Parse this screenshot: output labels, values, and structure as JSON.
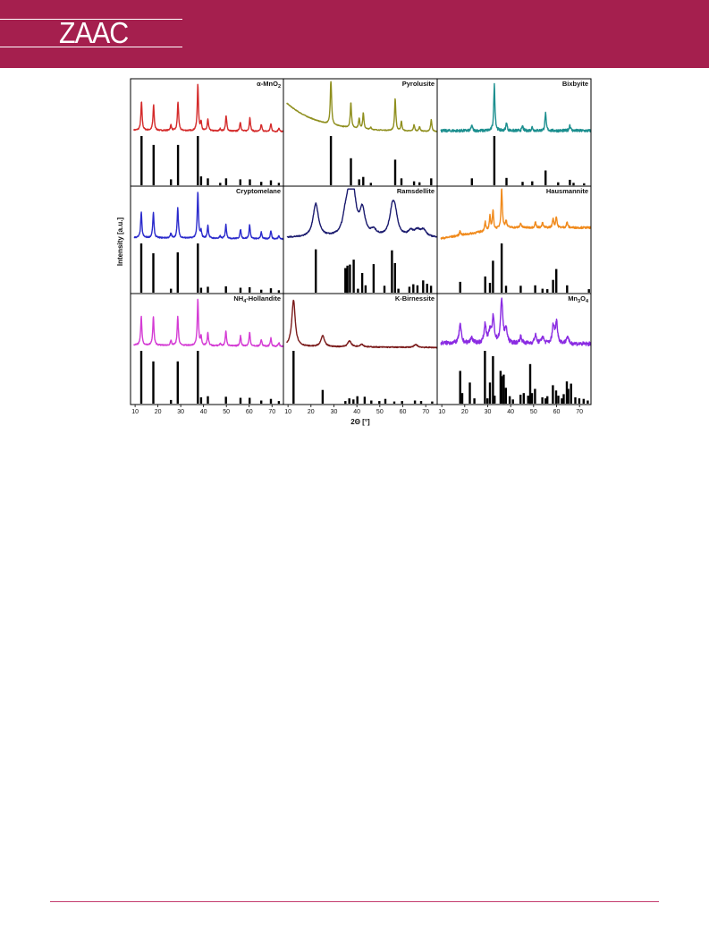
{
  "header": {
    "logo_text": "ZAAC",
    "band_color": "#a51f4e"
  },
  "chart_data": {
    "type": "line",
    "layout": "3x3 grid of panels, each with a measured pattern (top) and reference stick pattern (bottom)",
    "xlabel": "2Θ [°]",
    "ylabel": "Intensity [a.u.]",
    "xlim": [
      8,
      75
    ],
    "x_ticks": [
      "10",
      "20",
      "30",
      "40",
      "50",
      "60",
      "70"
    ],
    "x_ticks_first_column": [
      "10",
      "20",
      "30",
      "40",
      "50",
      "60",
      "70"
    ],
    "grid": false,
    "panels": [
      {
        "name": "α-MnO2",
        "title_parts": [
          {
            "t": "α-MnO"
          },
          {
            "t": "2",
            "sub": true
          }
        ],
        "color": "#d42a2a",
        "baseline_start": 0.08,
        "baseline_end": 0.05,
        "noise": 0.012,
        "peaks": [
          [
            12.8,
            0.62
          ],
          [
            18.1,
            0.55
          ],
          [
            25.7,
            0.12
          ],
          [
            28.8,
            0.62
          ],
          [
            37.5,
            1.0
          ],
          [
            38.9,
            0.18
          ],
          [
            41.9,
            0.25
          ],
          [
            47.3,
            0.05
          ],
          [
            49.9,
            0.33
          ],
          [
            56.1,
            0.2
          ],
          [
            60.3,
            0.3
          ],
          [
            65.3,
            0.15
          ],
          [
            69.5,
            0.17
          ],
          [
            73.0,
            0.08
          ]
        ],
        "sticks": [
          [
            12.8,
            1.0
          ],
          [
            18.1,
            0.82
          ],
          [
            25.7,
            0.12
          ],
          [
            28.8,
            0.82
          ],
          [
            37.5,
            1.0
          ],
          [
            38.9,
            0.18
          ],
          [
            41.9,
            0.14
          ],
          [
            47.3,
            0.05
          ],
          [
            49.9,
            0.14
          ],
          [
            56.1,
            0.12
          ],
          [
            60.3,
            0.12
          ],
          [
            65.3,
            0.07
          ],
          [
            69.5,
            0.1
          ],
          [
            73.0,
            0.05
          ]
        ]
      },
      {
        "name": "Pyrolusite",
        "title_parts": [
          {
            "t": "Pyrolusite"
          }
        ],
        "color": "#8f8f1e",
        "baseline_start": 0.62,
        "baseline_end": 0.05,
        "baseline_decay": 14,
        "noise": 0.008,
        "peaks": [
          [
            28.7,
            1.0
          ],
          [
            37.4,
            0.55
          ],
          [
            41.0,
            0.22
          ],
          [
            42.8,
            0.35
          ],
          [
            46.1,
            0.05
          ],
          [
            56.7,
            0.7
          ],
          [
            59.4,
            0.2
          ],
          [
            64.9,
            0.14
          ],
          [
            67.3,
            0.1
          ],
          [
            72.4,
            0.25
          ]
        ],
        "sticks": [
          [
            28.7,
            1.0
          ],
          [
            37.4,
            0.55
          ],
          [
            41.0,
            0.12
          ],
          [
            42.8,
            0.17
          ],
          [
            46.1,
            0.05
          ],
          [
            56.7,
            0.52
          ],
          [
            59.4,
            0.14
          ],
          [
            64.9,
            0.08
          ],
          [
            67.3,
            0.06
          ],
          [
            72.4,
            0.14
          ]
        ]
      },
      {
        "name": "Bixbyite",
        "title_parts": [
          {
            "t": "Bixbyite"
          }
        ],
        "color": "#1c8f8f",
        "baseline_start": 0.07,
        "baseline_end": 0.07,
        "noise": 0.028,
        "peaks": [
          [
            23.1,
            0.12
          ],
          [
            32.9,
            1.0
          ],
          [
            38.2,
            0.18
          ],
          [
            45.2,
            0.1
          ],
          [
            49.4,
            0.08
          ],
          [
            55.2,
            0.38
          ],
          [
            65.8,
            0.13
          ]
        ],
        "sticks": [
          [
            23.1,
            0.14
          ],
          [
            32.9,
            1.0
          ],
          [
            38.2,
            0.15
          ],
          [
            45.2,
            0.07
          ],
          [
            49.4,
            0.08
          ],
          [
            55.2,
            0.3
          ],
          [
            60.7,
            0.06
          ],
          [
            65.8,
            0.11
          ],
          [
            67.4,
            0.05
          ],
          [
            72.0,
            0.04
          ]
        ]
      },
      {
        "name": "Cryptomelane",
        "title_parts": [
          {
            "t": "Cryptomelane"
          }
        ],
        "color": "#2a2acc",
        "baseline_start": 0.08,
        "baseline_end": 0.05,
        "noise": 0.012,
        "peaks": [
          [
            12.7,
            0.55
          ],
          [
            18.0,
            0.55
          ],
          [
            25.7,
            0.1
          ],
          [
            28.7,
            0.65
          ],
          [
            37.5,
            1.0
          ],
          [
            38.9,
            0.15
          ],
          [
            41.9,
            0.28
          ],
          [
            47.3,
            0.05
          ],
          [
            49.8,
            0.3
          ],
          [
            56.2,
            0.2
          ],
          [
            60.2,
            0.3
          ],
          [
            65.3,
            0.15
          ],
          [
            69.5,
            0.18
          ],
          [
            73.0,
            0.08
          ]
        ],
        "sticks": [
          [
            12.7,
            1.0
          ],
          [
            18.0,
            0.8
          ],
          [
            25.7,
            0.08
          ],
          [
            28.7,
            0.82
          ],
          [
            37.5,
            1.0
          ],
          [
            38.9,
            0.1
          ],
          [
            41.9,
            0.12
          ],
          [
            49.8,
            0.13
          ],
          [
            56.2,
            0.1
          ],
          [
            60.2,
            0.11
          ],
          [
            65.3,
            0.06
          ],
          [
            69.5,
            0.09
          ],
          [
            73.0,
            0.05
          ]
        ]
      },
      {
        "name": "Ramsdellite",
        "title_parts": [
          {
            "t": "Ramsdellite"
          }
        ],
        "color": "#1a1a6e",
        "baseline_start": 0.08,
        "baseline_end": 0.08,
        "noise": 0.012,
        "peaks": [
          [
            22.1,
            0.72
          ],
          [
            35.0,
            0.35
          ],
          [
            36.9,
            0.88
          ],
          [
            38.6,
            0.65
          ],
          [
            42.4,
            0.55
          ],
          [
            47.3,
            0.12
          ],
          [
            55.4,
            0.5
          ],
          [
            56.6,
            0.42
          ],
          [
            63.5,
            0.12
          ],
          [
            66.4,
            0.13
          ],
          [
            69.0,
            0.15
          ]
        ],
        "widths": 1.4,
        "sticks": [
          [
            22.1,
            0.88
          ],
          [
            35.0,
            0.5
          ],
          [
            35.9,
            0.55
          ],
          [
            37.0,
            0.57
          ],
          [
            38.6,
            0.67
          ],
          [
            40.5,
            0.08
          ],
          [
            42.3,
            0.4
          ],
          [
            43.8,
            0.15
          ],
          [
            47.3,
            0.58
          ],
          [
            52.0,
            0.14
          ],
          [
            55.3,
            0.86
          ],
          [
            56.6,
            0.6
          ],
          [
            58.1,
            0.08
          ],
          [
            62.9,
            0.12
          ],
          [
            64.6,
            0.17
          ],
          [
            66.4,
            0.15
          ],
          [
            68.9,
            0.25
          ],
          [
            70.6,
            0.18
          ],
          [
            72.3,
            0.14
          ]
        ]
      },
      {
        "name": "Hausmannite",
        "title_parts": [
          {
            "t": "Hausmannite"
          }
        ],
        "color": "#f08a1c",
        "baseline_start": 0.05,
        "baseline_end": 0.28,
        "baseline_shape": "rise",
        "noise": 0.02,
        "peaks": [
          [
            18.0,
            0.1
          ],
          [
            28.9,
            0.2
          ],
          [
            31.0,
            0.3
          ],
          [
            32.3,
            0.42
          ],
          [
            36.1,
            0.88
          ],
          [
            38.0,
            0.16
          ],
          [
            44.4,
            0.1
          ],
          [
            50.8,
            0.12
          ],
          [
            53.9,
            0.1
          ],
          [
            58.5,
            0.2
          ],
          [
            59.9,
            0.24
          ],
          [
            64.6,
            0.12
          ]
        ],
        "sticks": [
          [
            18.0,
            0.22
          ],
          [
            28.9,
            0.33
          ],
          [
            31.0,
            0.2
          ],
          [
            32.3,
            0.65
          ],
          [
            36.1,
            1.0
          ],
          [
            38.0,
            0.14
          ],
          [
            44.4,
            0.14
          ],
          [
            50.7,
            0.15
          ],
          [
            53.9,
            0.08
          ],
          [
            56.0,
            0.07
          ],
          [
            58.5,
            0.26
          ],
          [
            59.9,
            0.48
          ],
          [
            64.6,
            0.15
          ],
          [
            74.1,
            0.07
          ]
        ]
      },
      {
        "name": "NH4-Hollandite",
        "title_parts": [
          {
            "t": "NH"
          },
          {
            "t": "4",
            "sub": true
          },
          {
            "t": "-Hollandite"
          }
        ],
        "color": "#d43bd4",
        "baseline_start": 0.08,
        "baseline_end": 0.05,
        "noise": 0.012,
        "peaks": [
          [
            12.7,
            0.62
          ],
          [
            18.0,
            0.62
          ],
          [
            25.7,
            0.1
          ],
          [
            28.7,
            0.62
          ],
          [
            37.5,
            1.0
          ],
          [
            38.9,
            0.18
          ],
          [
            41.9,
            0.28
          ],
          [
            47.3,
            0.05
          ],
          [
            49.8,
            0.32
          ],
          [
            56.2,
            0.22
          ],
          [
            60.2,
            0.3
          ],
          [
            65.3,
            0.15
          ],
          [
            69.5,
            0.18
          ],
          [
            73.0,
            0.08
          ]
        ],
        "sticks": [
          [
            12.7,
            1.0
          ],
          [
            18.0,
            0.8
          ],
          [
            25.7,
            0.07
          ],
          [
            28.7,
            0.8
          ],
          [
            37.5,
            1.0
          ],
          [
            38.9,
            0.12
          ],
          [
            41.9,
            0.14
          ],
          [
            49.8,
            0.13
          ],
          [
            56.2,
            0.11
          ],
          [
            60.2,
            0.11
          ],
          [
            65.3,
            0.06
          ],
          [
            69.5,
            0.09
          ],
          [
            73.0,
            0.05
          ]
        ]
      },
      {
        "name": "K-Birnessite",
        "title_parts": [
          {
            "t": "K-Birnessite"
          }
        ],
        "color": "#7a1a1a",
        "baseline_start": 0.05,
        "baseline_end": 0.03,
        "noise": 0.01,
        "peaks": [
          [
            12.4,
            1.0
          ],
          [
            25.1,
            0.24
          ],
          [
            36.8,
            0.13
          ],
          [
            42.1,
            0.06
          ],
          [
            65.7,
            0.06
          ]
        ],
        "widths": 0.9,
        "sticks": [
          [
            12.4,
            1.0
          ],
          [
            25.1,
            0.26
          ],
          [
            35.0,
            0.05
          ],
          [
            36.7,
            0.1
          ],
          [
            38.5,
            0.08
          ],
          [
            40.2,
            0.14
          ],
          [
            43.4,
            0.13
          ],
          [
            46.3,
            0.06
          ],
          [
            49.8,
            0.05
          ],
          [
            52.4,
            0.09
          ],
          [
            56.3,
            0.04
          ],
          [
            59.7,
            0.05
          ],
          [
            65.3,
            0.06
          ],
          [
            68.0,
            0.05
          ],
          [
            72.8,
            0.04
          ]
        ]
      },
      {
        "name": "Mn3O4",
        "title_parts": [
          {
            "t": "Mn"
          },
          {
            "t": "3",
            "sub": true
          },
          {
            "t": "O"
          },
          {
            "t": "4",
            "sub": true
          }
        ],
        "color": "#8a2be2",
        "baseline_start": 0.12,
        "baseline_end": 0.1,
        "noise": 0.04,
        "peaks": [
          [
            18.0,
            0.4
          ],
          [
            23.0,
            0.12
          ],
          [
            28.9,
            0.4
          ],
          [
            31.0,
            0.25
          ],
          [
            32.4,
            0.55
          ],
          [
            36.1,
            0.95
          ],
          [
            38.0,
            0.3
          ],
          [
            44.4,
            0.15
          ],
          [
            50.8,
            0.18
          ],
          [
            53.9,
            0.15
          ],
          [
            58.6,
            0.38
          ],
          [
            60.0,
            0.45
          ],
          [
            64.7,
            0.15
          ]
        ],
        "widths": 0.55,
        "sticks": [
          [
            18.0,
            0.62
          ],
          [
            18.9,
            0.2
          ],
          [
            22.2,
            0.4
          ],
          [
            24.2,
            0.1
          ],
          [
            28.8,
            1.0
          ],
          [
            29.9,
            0.1
          ],
          [
            31.0,
            0.4
          ],
          [
            32.3,
            0.9
          ],
          [
            33.0,
            0.15
          ],
          [
            35.6,
            0.62
          ],
          [
            36.1,
            0.52
          ],
          [
            37.0,
            0.55
          ],
          [
            37.9,
            0.3
          ],
          [
            39.6,
            0.14
          ],
          [
            41.0,
            0.08
          ],
          [
            44.3,
            0.17
          ],
          [
            45.7,
            0.2
          ],
          [
            47.6,
            0.15
          ],
          [
            48.5,
            0.75
          ],
          [
            49.3,
            0.2
          ],
          [
            50.6,
            0.28
          ],
          [
            53.8,
            0.12
          ],
          [
            55.2,
            0.1
          ],
          [
            56.0,
            0.14
          ],
          [
            58.4,
            0.35
          ],
          [
            59.8,
            0.25
          ],
          [
            60.8,
            0.15
          ],
          [
            62.3,
            0.1
          ],
          [
            63.1,
            0.18
          ],
          [
            64.5,
            0.42
          ],
          [
            65.1,
            0.28
          ],
          [
            66.3,
            0.38
          ],
          [
            68.2,
            0.12
          ],
          [
            69.9,
            0.1
          ],
          [
            71.8,
            0.09
          ],
          [
            73.6,
            0.06
          ]
        ]
      }
    ]
  }
}
